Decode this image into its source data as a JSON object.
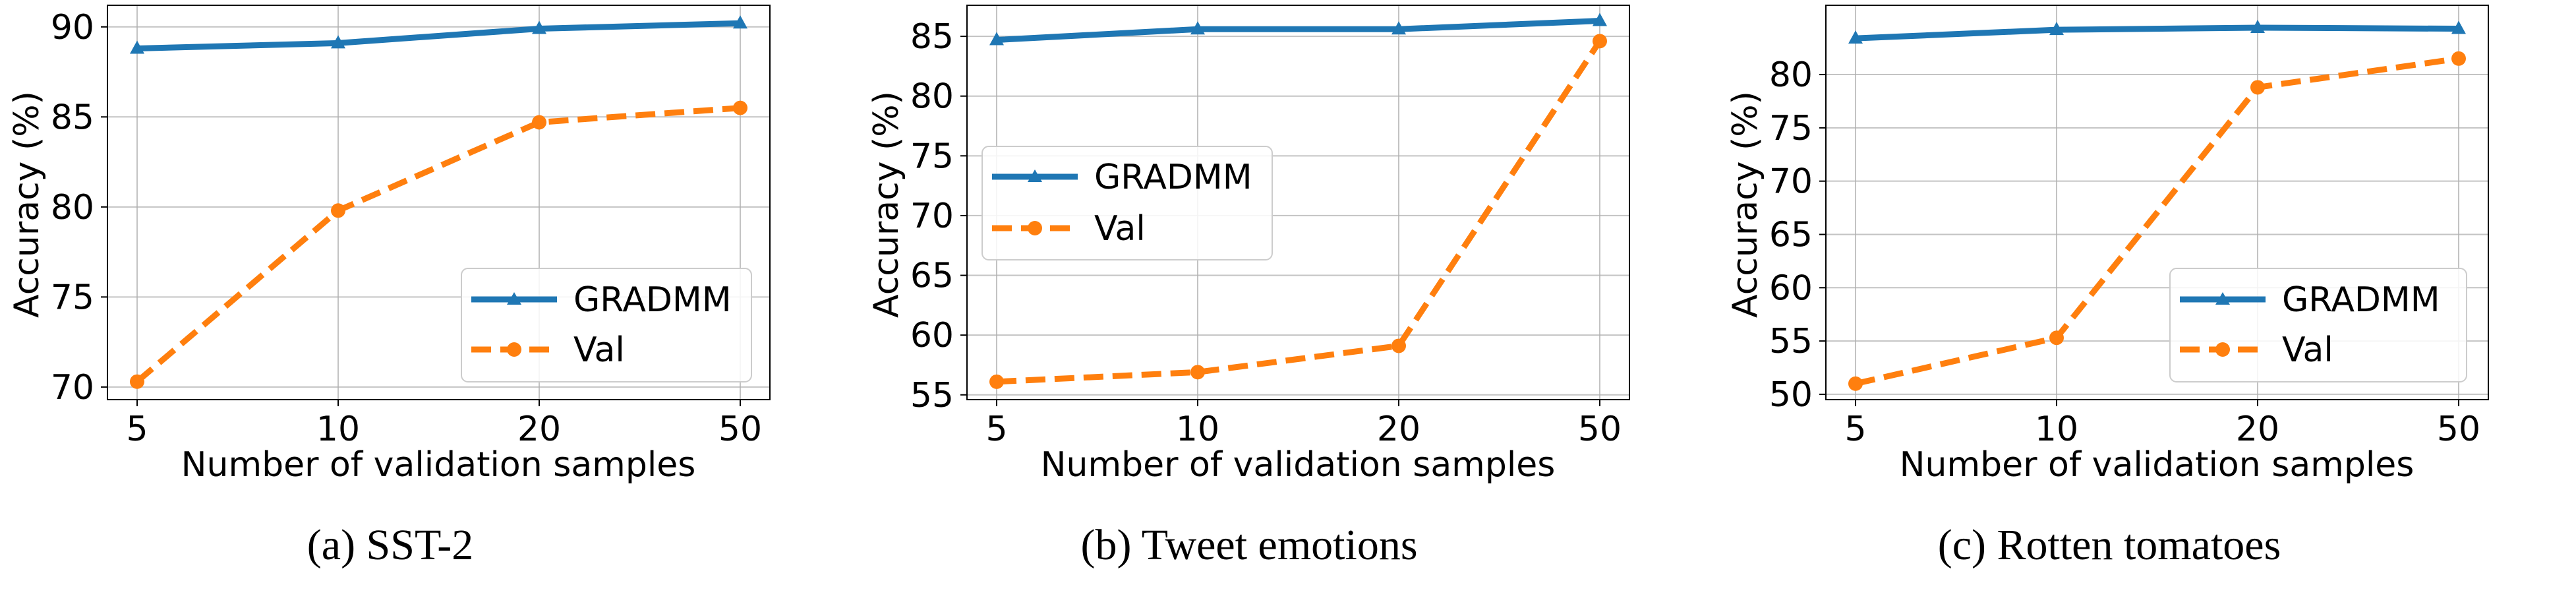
{
  "colors": {
    "gradmm": "#1f77b4",
    "val": "#ff7f0e",
    "grid": "#b0b0b0"
  },
  "chart_data": [
    {
      "type": "line",
      "caption": "(a) SST-2",
      "categories": [
        "5",
        "10",
        "20",
        "50"
      ],
      "xlabel": "Number of validation samples",
      "ylabel": "Accuracy (%)",
      "ylim": [
        69.3,
        91.2
      ],
      "yticks": [
        70,
        75,
        80,
        85,
        90
      ],
      "grid": true,
      "legend_position": "lower-right",
      "series": [
        {
          "name": "GRADMM",
          "marker": "triangle",
          "style": "solid",
          "values": [
            88.8,
            89.1,
            89.9,
            90.2
          ]
        },
        {
          "name": "Val",
          "marker": "circle",
          "style": "dashed",
          "values": [
            70.3,
            79.8,
            84.7,
            85.5
          ]
        }
      ]
    },
    {
      "type": "line",
      "caption": "(b) Tweet emotions",
      "categories": [
        "5",
        "10",
        "20",
        "50"
      ],
      "xlabel": "Number of validation samples",
      "ylabel": "Accuracy (%)",
      "ylim": [
        54.6,
        87.6
      ],
      "yticks": [
        55,
        60,
        65,
        70,
        75,
        80,
        85
      ],
      "grid": true,
      "legend_position": "upper-left",
      "series": [
        {
          "name": "GRADMM",
          "marker": "triangle",
          "style": "solid",
          "values": [
            84.7,
            85.6,
            85.6,
            86.3
          ]
        },
        {
          "name": "Val",
          "marker": "circle",
          "style": "dashed",
          "values": [
            56.1,
            56.9,
            59.1,
            84.6
          ]
        }
      ]
    },
    {
      "type": "line",
      "caption": "(c) Rotten tomatoes",
      "categories": [
        "5",
        "10",
        "20",
        "50"
      ],
      "xlabel": "Number of validation samples",
      "ylabel": "Accuracy (%)",
      "ylim": [
        49.5,
        86.5
      ],
      "yticks": [
        50,
        55,
        60,
        65,
        70,
        75,
        80
      ],
      "grid": true,
      "legend_position": "lower-right",
      "series": [
        {
          "name": "GRADMM",
          "marker": "triangle",
          "style": "solid",
          "values": [
            83.4,
            84.2,
            84.4,
            84.3
          ]
        },
        {
          "name": "Val",
          "marker": "circle",
          "style": "dashed",
          "values": [
            51.0,
            55.3,
            78.8,
            81.5
          ]
        }
      ]
    }
  ]
}
